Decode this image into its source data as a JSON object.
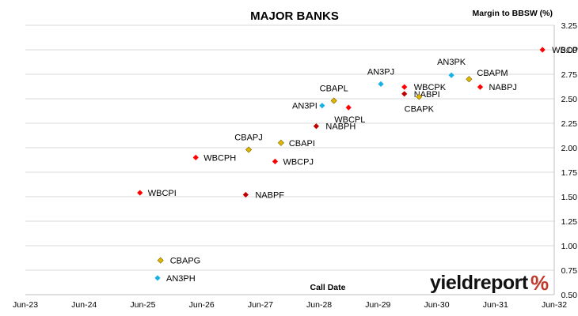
{
  "chart_data": {
    "type": "scatter",
    "title": "MAJOR BANKS",
    "ylabel": "Margin to BBSW (%)",
    "xlabel": "Call Date",
    "ylim": [
      0.5,
      3.25
    ],
    "y_ticks": [
      "0.50",
      "0.75",
      "1.00",
      "1.25",
      "1.50",
      "1.75",
      "2.00",
      "2.25",
      "2.50",
      "2.75",
      "3.00",
      "3.25"
    ],
    "x_ticks": [
      "Jun-23",
      "Jun-24",
      "Jun-25",
      "Jun-26",
      "Jun-27",
      "Jun-28",
      "Jun-29",
      "Jun-30",
      "Jun-31",
      "Jun-32"
    ],
    "grid": "horizontal",
    "series": [
      {
        "color": "#ff0000",
        "points": [
          {
            "label": "WBCPI",
            "x": 2024.95,
            "y": 1.54
          },
          {
            "label": "WBCPH",
            "x": 2025.9,
            "y": 1.9
          },
          {
            "label": "WBCPJ",
            "x": 2027.25,
            "y": 1.86
          },
          {
            "label": "WBCPL",
            "x": 2028.5,
            "y": 2.41
          },
          {
            "label": "WBCPK",
            "x": 2029.45,
            "y": 2.62
          },
          {
            "label": "NABPJ",
            "x": 2030.74,
            "y": 2.62
          },
          {
            "label": "WBCPM",
            "x": 2031.8,
            "y": 3.0
          }
        ]
      },
      {
        "color": "#c00000",
        "points": [
          {
            "label": "NABPF",
            "x": 2026.75,
            "y": 1.52
          },
          {
            "label": "NABPH",
            "x": 2027.95,
            "y": 2.22
          },
          {
            "label": "NABPI",
            "x": 2029.45,
            "y": 2.55
          }
        ]
      },
      {
        "color": "#e0b800",
        "points": [
          {
            "label": "CBAPG",
            "x": 2025.3,
            "y": 0.85
          },
          {
            "label": "CBAPJ",
            "x": 2026.8,
            "y": 1.98
          },
          {
            "label": "CBAPI",
            "x": 2027.35,
            "y": 2.05
          },
          {
            "label": "CBAPL",
            "x": 2028.25,
            "y": 2.48
          },
          {
            "label": "CBAPK",
            "x": 2029.7,
            "y": 2.52
          },
          {
            "label": "CBAPM",
            "x": 2030.55,
            "y": 2.7
          }
        ]
      },
      {
        "color": "#19b0e6",
        "points": [
          {
            "label": "AN3PH",
            "x": 2025.25,
            "y": 0.67
          },
          {
            "label": "AN3PI",
            "x": 2028.05,
            "y": 2.43
          },
          {
            "label": "AN3PJ",
            "x": 2029.05,
            "y": 2.65
          },
          {
            "label": "AN3PK",
            "x": 2030.25,
            "y": 2.74
          }
        ]
      }
    ]
  },
  "logo": {
    "text": "yieldreport",
    "symbol": "%"
  }
}
